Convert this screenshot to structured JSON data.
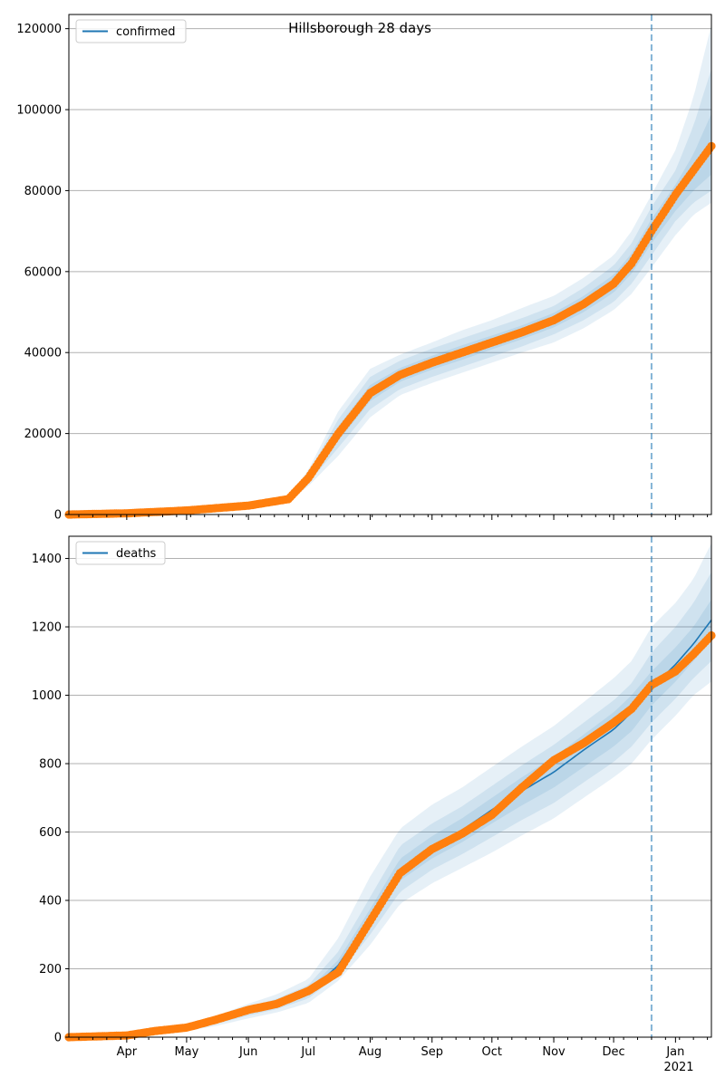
{
  "chart_data": [
    {
      "type": "line",
      "title": "Hillsborough 28 days",
      "legend": [
        "confirmed"
      ],
      "legend_position": "upper-left",
      "grid": "y",
      "ylim": [
        0,
        123500
      ],
      "y_ticks": [
        0,
        20000,
        40000,
        60000,
        80000,
        100000,
        120000
      ],
      "y_tick_labels": [
        "0",
        "20000",
        "40000",
        "60000",
        "80000",
        "100000",
        "120000"
      ],
      "forecast_start": "2020-12-20",
      "x": [
        "2020-03-03",
        "2020-04-01",
        "2020-05-01",
        "2020-06-01",
        "2020-06-21",
        "2020-07-01",
        "2020-07-16",
        "2020-08-01",
        "2020-08-16",
        "2020-09-01",
        "2020-09-16",
        "2020-10-01",
        "2020-10-16",
        "2020-11-01",
        "2020-11-16",
        "2020-12-01",
        "2020-12-10",
        "2020-12-20",
        "2021-01-01",
        "2021-01-10",
        "2021-01-19"
      ],
      "series": [
        {
          "name": "confirmed",
          "values": [
            0,
            300,
            1000,
            2200,
            3800,
            9000,
            20000,
            30000,
            34500,
            37500,
            40000,
            42500,
            45000,
            48000,
            52000,
            57000,
            62000,
            70000,
            78000,
            84000,
            91000
          ]
        }
      ],
      "observed": [
        0,
        300,
        1000,
        2200,
        3800,
        9000,
        20000,
        30000,
        34500,
        37500,
        40000,
        42500,
        45000,
        48000,
        52000,
        57000,
        62000,
        70000,
        79000,
        85000,
        91000
      ],
      "bands": [
        {
          "lower": [
            0,
            250,
            850,
            1900,
            3300,
            7000,
            14500,
            24000,
            29500,
            32500,
            35000,
            37500,
            40000,
            42500,
            46000,
            50500,
            54500,
            61000,
            69000,
            74000,
            77000
          ],
          "upper": [
            0,
            350,
            1150,
            2500,
            4300,
            11000,
            25500,
            36000,
            39500,
            42500,
            45500,
            48000,
            51000,
            54000,
            58500,
            64000,
            70000,
            79000,
            90000,
            103000,
            121000
          ]
        },
        {
          "lower": [
            0,
            270,
            900,
            2000,
            3500,
            7800,
            16500,
            26000,
            31000,
            34000,
            36500,
            39000,
            41500,
            44500,
            48000,
            52500,
            57000,
            64000,
            72500,
            77000,
            80000
          ],
          "upper": [
            0,
            330,
            1100,
            2400,
            4100,
            10200,
            23500,
            34000,
            38000,
            41000,
            43500,
            46000,
            48500,
            51500,
            56000,
            61500,
            67000,
            76000,
            85000,
            96000,
            110000
          ]
        },
        {
          "lower": [
            0,
            285,
            950,
            2100,
            3650,
            8400,
            18200,
            28000,
            32800,
            35800,
            38200,
            40800,
            43300,
            46200,
            50000,
            54800,
            59500,
            67000,
            75000,
            80000,
            84000
          ],
          "upper": [
            0,
            315,
            1050,
            2300,
            3950,
            9600,
            21800,
            32000,
            36200,
            39200,
            41800,
            44200,
            46700,
            49800,
            54000,
            59200,
            64500,
            73000,
            81500,
            89000,
            99000
          ]
        }
      ]
    },
    {
      "type": "line",
      "legend": [
        "deaths"
      ],
      "legend_position": "upper-left",
      "grid": "y",
      "ylim": [
        0,
        1465
      ],
      "y_ticks": [
        0,
        200,
        400,
        600,
        800,
        1000,
        1200,
        1400
      ],
      "y_tick_labels": [
        "0",
        "200",
        "400",
        "600",
        "800",
        "1000",
        "1200",
        "1400"
      ],
      "forecast_start": "2020-12-20",
      "x_month_ticks": [
        "2020-04-01",
        "2020-05-01",
        "2020-06-01",
        "2020-07-01",
        "2020-08-01",
        "2020-09-01",
        "2020-10-01",
        "2020-11-01",
        "2020-12-01",
        "2021-01-01"
      ],
      "x_tick_labels": [
        "Apr",
        "May",
        "Jun",
        "Jul",
        "Aug",
        "Sep",
        "Oct",
        "Nov",
        "Dec",
        "Jan"
      ],
      "x_year_label": "2021",
      "x": [
        "2020-03-03",
        "2020-04-01",
        "2020-04-15",
        "2020-05-01",
        "2020-05-15",
        "2020-06-01",
        "2020-06-15",
        "2020-07-01",
        "2020-07-16",
        "2020-08-01",
        "2020-08-16",
        "2020-09-01",
        "2020-09-16",
        "2020-10-01",
        "2020-10-16",
        "2020-11-01",
        "2020-11-16",
        "2020-12-01",
        "2020-12-10",
        "2020-12-20",
        "2021-01-01",
        "2021-01-10",
        "2021-01-19"
      ],
      "series": [
        {
          "name": "deaths",
          "values": [
            0,
            5,
            15,
            25,
            45,
            75,
            95,
            130,
            210,
            350,
            490,
            555,
            605,
            665,
            720,
            775,
            840,
            900,
            950,
            1020,
            1090,
            1150,
            1220
          ]
        }
      ],
      "observed": [
        0,
        5,
        18,
        28,
        50,
        80,
        97,
        135,
        190,
        340,
        480,
        550,
        595,
        650,
        730,
        810,
        860,
        920,
        960,
        1030,
        1070,
        1120,
        1175
      ],
      "bands": [
        {
          "lower": [
            0,
            3,
            10,
            18,
            32,
            55,
            72,
            100,
            165,
            270,
            390,
            450,
            495,
            540,
            590,
            640,
            700,
            760,
            800,
            870,
            940,
            1000,
            1040
          ],
          "upper": [
            0,
            7,
            20,
            35,
            60,
            98,
            125,
            170,
            290,
            470,
            610,
            680,
            730,
            790,
            850,
            910,
            980,
            1050,
            1100,
            1200,
            1270,
            1340,
            1445
          ]
        },
        {
          "lower": [
            0,
            4,
            12,
            21,
            38,
            63,
            82,
            113,
            182,
            300,
            425,
            490,
            535,
            585,
            635,
            685,
            745,
            805,
            850,
            920,
            990,
            1050,
            1100
          ],
          "upper": [
            0,
            6,
            18,
            31,
            53,
            88,
            112,
            152,
            250,
            410,
            560,
            625,
            675,
            735,
            795,
            855,
            920,
            985,
            1035,
            1125,
            1200,
            1270,
            1360
          ]
        },
        {
          "lower": [
            0,
            4.5,
            13.5,
            23,
            41,
            69,
            88,
            121,
            196,
            325,
            458,
            523,
            570,
            625,
            678,
            730,
            790,
            850,
            895,
            970,
            1040,
            1100,
            1160
          ],
          "upper": [
            0,
            5.5,
            16.5,
            27,
            49,
            81,
            102,
            140,
            226,
            375,
            522,
            588,
            640,
            700,
            760,
            820,
            885,
            950,
            1000,
            1070,
            1140,
            1200,
            1280
          ]
        }
      ]
    }
  ]
}
